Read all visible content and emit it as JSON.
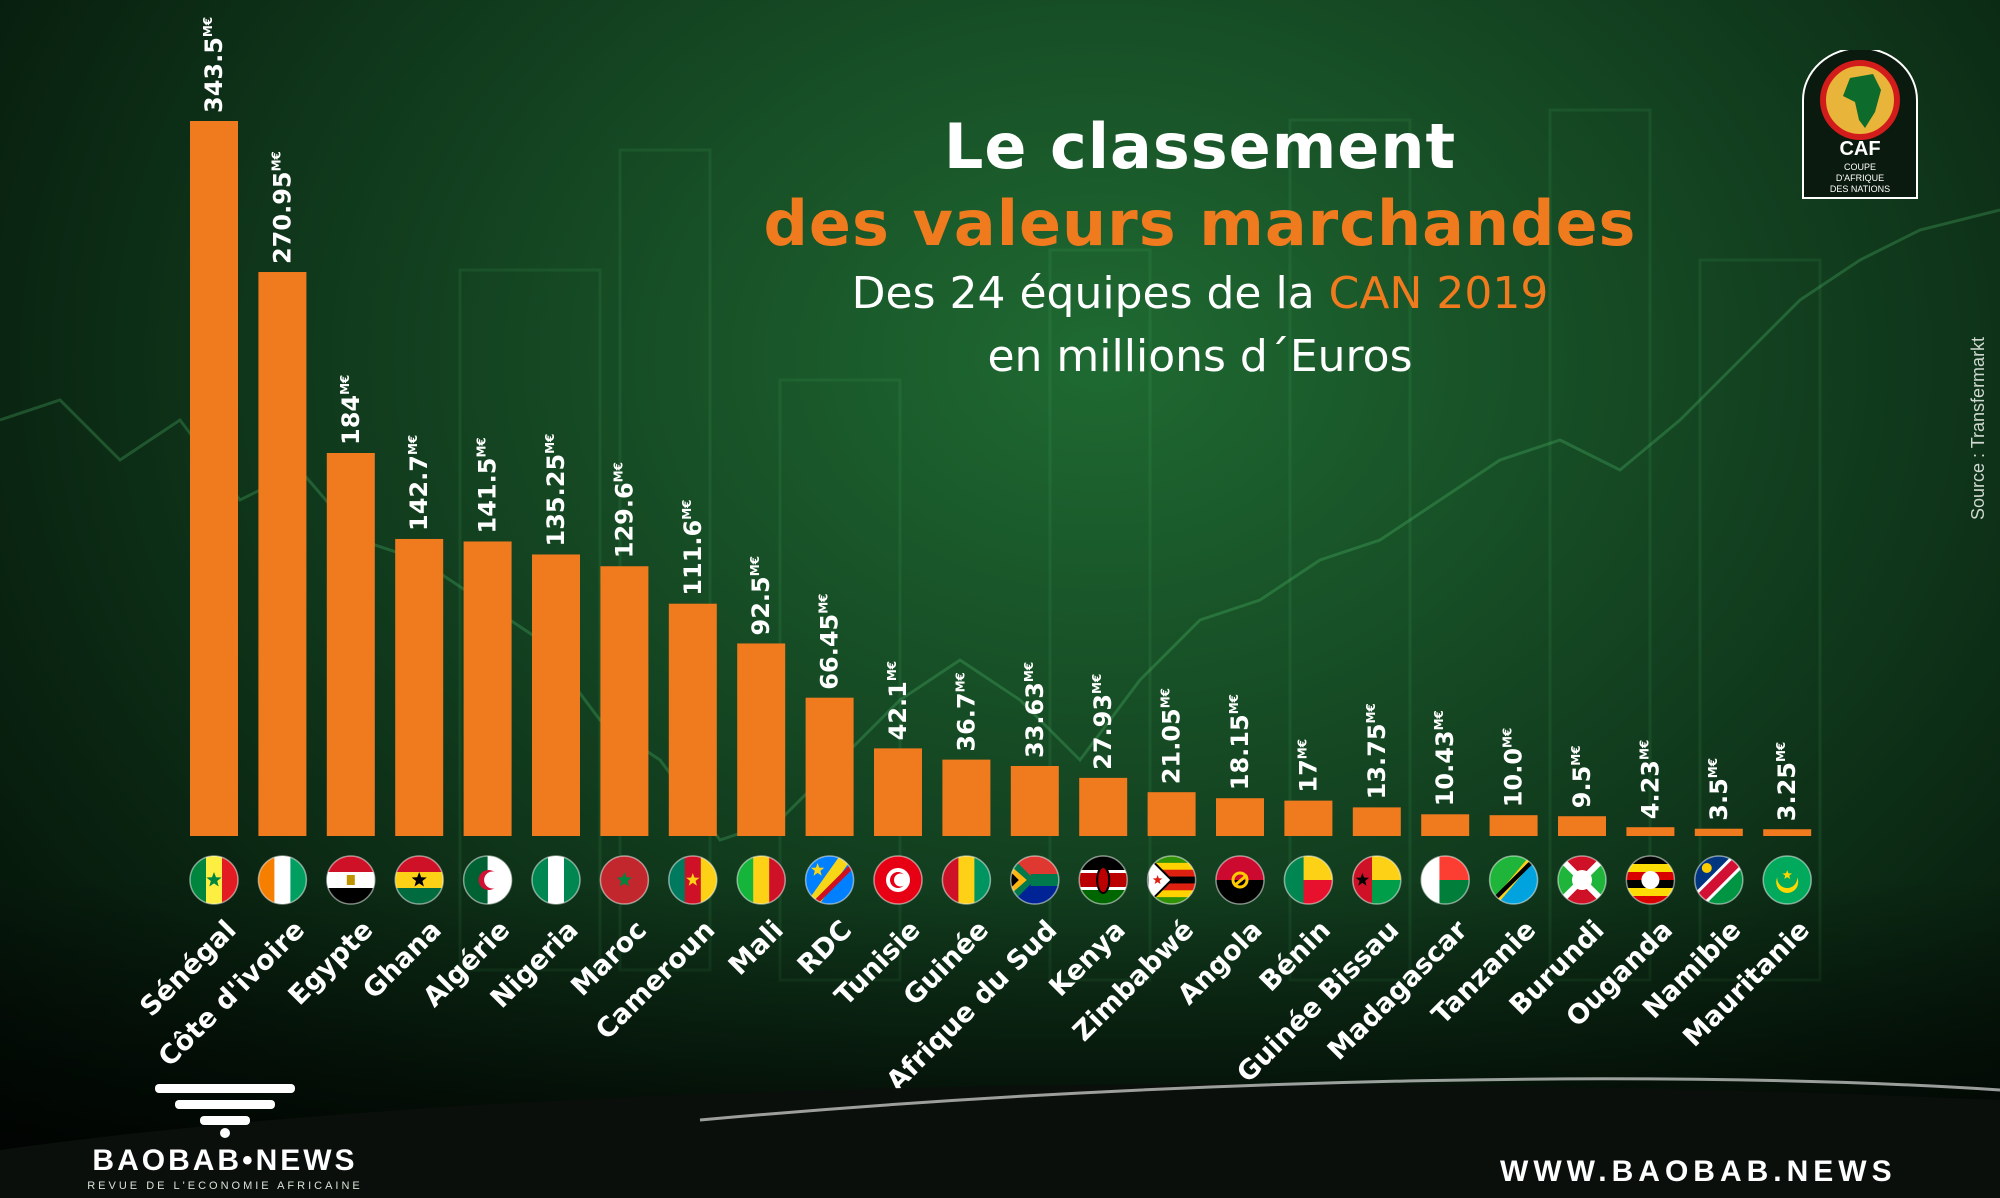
{
  "title": {
    "line1": "Le classement",
    "line2": "des valeurs marchandes",
    "line3_prefix": "Des 24 équipes de la ",
    "line3_highlight": "CAN 2019",
    "line4": "en millions d´Euros"
  },
  "source": "Source : Transfermarkt",
  "logo": {
    "text": "CAF",
    "subtitle_lines": [
      "COUPE",
      "D'AFRIQUE",
      "DES NATIONS"
    ]
  },
  "brand": {
    "name": "BAOBAB•NEWS",
    "tagline": "REVUE DE L'ECONOMIE AFRICAINE",
    "website": "WWW.BAOBAB.NEWS"
  },
  "colors": {
    "bar": "#f07a1e",
    "highlight": "#f07a1e",
    "background": "#123f1f"
  },
  "chart_data": {
    "type": "bar",
    "unit_suffix": "M€",
    "categories": [
      "Sénégal",
      "Côte d'ivoire",
      "Egypte",
      "Ghana",
      "Algérie",
      "Nigeria",
      "Maroc",
      "Cameroun",
      "Mali",
      "RDC",
      "Tunisie",
      "Guinée",
      "Afrique du Sud",
      "Kenya",
      "Zimbabwé",
      "Angola",
      "Bénin",
      "Guinée Bissau",
      "Madagascar",
      "Tanzanie",
      "Burundi",
      "Ouganda",
      "Namibie",
      "Mauritanie"
    ],
    "values": [
      343.5,
      270.95,
      184,
      142.7,
      141.5,
      135.25,
      129.6,
      111.6,
      92.5,
      66.45,
      42.1,
      36.7,
      33.63,
      27.93,
      21.05,
      18.15,
      17,
      13.75,
      10.43,
      10.0,
      9.5,
      4.23,
      3.5,
      3.25
    ],
    "value_labels": [
      "343.5",
      "270.95",
      "184",
      "142.7",
      "141.5",
      "135.25",
      "129.6",
      "111.6",
      "92.5",
      "66.45",
      "42.1",
      "36.7",
      "33.63",
      "27.93",
      "21.05",
      "18.15",
      "17",
      "13.75",
      "10.43",
      "10.0",
      "9.5",
      "4.23",
      "3.5",
      "3.25"
    ],
    "flags": [
      {
        "type": "v",
        "colors": [
          "#00853f",
          "#fdef42",
          "#e31b23"
        ],
        "emblem": "star-green"
      },
      {
        "type": "v",
        "colors": [
          "#f77f00",
          "#ffffff",
          "#009e60"
        ]
      },
      {
        "type": "h",
        "colors": [
          "#ce1126",
          "#ffffff",
          "#000000"
        ],
        "emblem": "eagle"
      },
      {
        "type": "h",
        "colors": [
          "#ce1126",
          "#fcd116",
          "#006b3f"
        ],
        "emblem": "star-black"
      },
      {
        "type": "v",
        "colors": [
          "#006233",
          "#ffffff"
        ],
        "emblem": "crescent"
      },
      {
        "type": "v",
        "colors": [
          "#008751",
          "#ffffff",
          "#008751"
        ]
      },
      {
        "type": "solid",
        "colors": [
          "#c1272d"
        ],
        "emblem": "star-green"
      },
      {
        "type": "v",
        "colors": [
          "#007a5e",
          "#ce1126",
          "#fcd116"
        ],
        "emblem": "star-yellow"
      },
      {
        "type": "v",
        "colors": [
          "#14b53a",
          "#fcd116",
          "#ce1126"
        ]
      },
      {
        "type": "diag",
        "colors": [
          "#007fff",
          "#f7d618",
          "#ce1021"
        ],
        "emblem": "star-yellow-left"
      },
      {
        "type": "solid",
        "colors": [
          "#e70013"
        ],
        "emblem": "tunisia"
      },
      {
        "type": "v",
        "colors": [
          "#ce1126",
          "#fcd116",
          "#009460"
        ]
      },
      {
        "type": "za",
        "colors": [
          "#007a4d",
          "#ffb612",
          "#000000",
          "#de3831",
          "#002395"
        ]
      },
      {
        "type": "h",
        "colors": [
          "#000000",
          "#bb0000",
          "#006600"
        ],
        "emblem": "shield"
      },
      {
        "type": "h7",
        "colors": [
          "#319208",
          "#ffd200",
          "#de2010",
          "#000000",
          "#de2010",
          "#ffd200",
          "#319208"
        ],
        "emblem": "triangle-white"
      },
      {
        "type": "h",
        "colors": [
          "#cc092f",
          "#000000"
        ],
        "emblem": "angola"
      },
      {
        "type": "benin",
        "colors": [
          "#008751",
          "#fcd116",
          "#e8112d"
        ]
      },
      {
        "type": "gb",
        "colors": [
          "#ce1126",
          "#fcd116",
          "#009e49"
        ],
        "emblem": "star-black"
      },
      {
        "type": "mg",
        "colors": [
          "#ffffff",
          "#fc3d32",
          "#007e3a"
        ]
      },
      {
        "type": "tz",
        "colors": [
          "#1eb53a",
          "#00a3dd",
          "#fcd116",
          "#000000"
        ]
      },
      {
        "type": "bi",
        "colors": [
          "#ce1126",
          "#1eb53a",
          "#ffffff"
        ]
      },
      {
        "type": "h6",
        "colors": [
          "#000000",
          "#fcdc04",
          "#d90000",
          "#000000",
          "#fcdc04",
          "#d90000"
        ],
        "emblem": "circle-white"
      },
      {
        "type": "na",
        "colors": [
          "#003580",
          "#d21034",
          "#009543",
          "#ffce00"
        ]
      },
      {
        "type": "solid",
        "colors": [
          "#00a95c"
        ],
        "emblem": "crescent-yellow"
      }
    ]
  }
}
